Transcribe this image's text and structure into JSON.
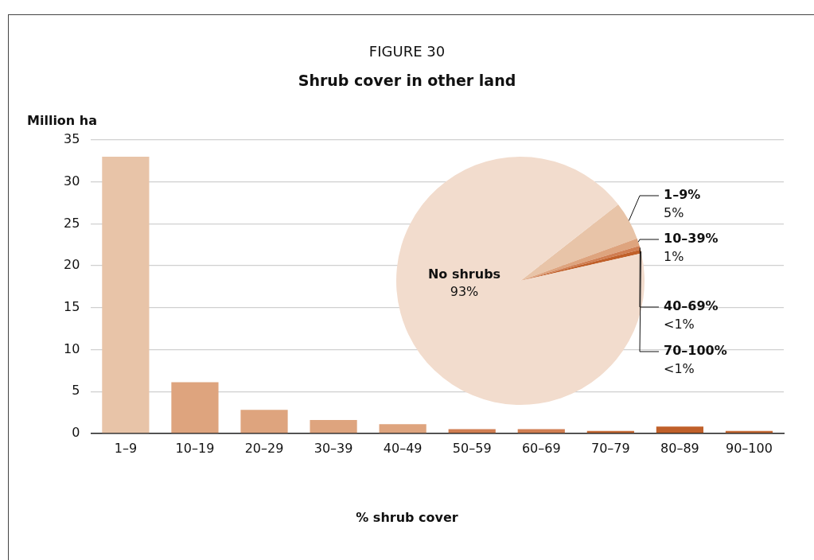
{
  "chart_data": [
    {
      "type": "bar",
      "title": "FIGURE 30",
      "subtitle": "Shrub cover in other land",
      "ylabel": "Million ha",
      "xlabel": "% shrub cover",
      "categories": [
        "1–9",
        "10–19",
        "20–29",
        "30–39",
        "40–49",
        "50–59",
        "60–69",
        "70–79",
        "80–89",
        "90–100"
      ],
      "values": [
        33,
        6.1,
        2.8,
        1.6,
        1.1,
        0.5,
        0.5,
        0.3,
        0.8,
        0.3
      ],
      "colors": [
        "#e8c4a8",
        "#dea47e",
        "#dea47e",
        "#dea47e",
        "#dea47e",
        "#d07e52",
        "#d07e52",
        "#c46a36",
        "#c0602a",
        "#c46a36"
      ],
      "ylim": [
        0,
        35
      ],
      "yticks": [
        0,
        5,
        10,
        15,
        20,
        25,
        30,
        35
      ],
      "grid": "y",
      "legend": false
    },
    {
      "type": "pie",
      "categories": [
        "1–9%",
        "10–39%",
        "40–69%",
        "70–100%",
        "No shrubs"
      ],
      "values": [
        5,
        1,
        0.5,
        0.5,
        93
      ],
      "value_labels": [
        "5%",
        "1%",
        "<1%",
        "<1%",
        "93%"
      ],
      "colors": [
        "#e8c4a8",
        "#dea47e",
        "#d07e52",
        "#c0602a",
        "#f2dccd"
      ],
      "legend": false
    }
  ]
}
